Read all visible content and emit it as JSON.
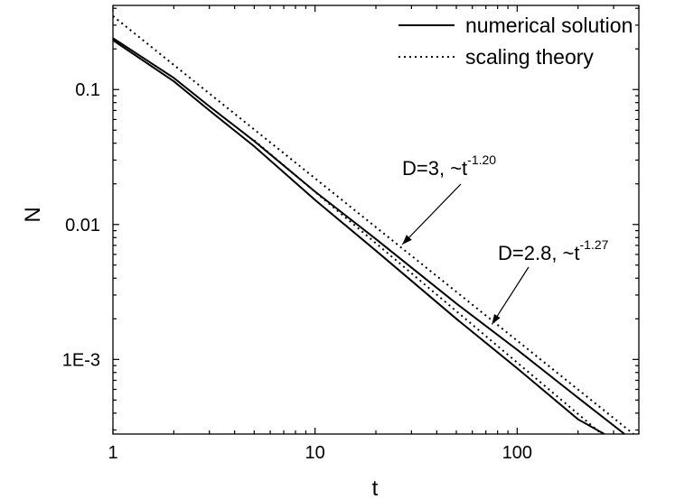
{
  "chart_data": {
    "type": "line",
    "xlabel": "t",
    "ylabel": "N",
    "xscale": "log",
    "yscale": "log",
    "xlim": [
      1,
      400
    ],
    "ylim": [
      0.00028,
      0.42
    ],
    "x_ticks": [
      {
        "value": 1,
        "label": "1"
      },
      {
        "value": 10,
        "label": "10"
      },
      {
        "value": 100,
        "label": "100"
      }
    ],
    "y_ticks": [
      {
        "value": 0.1,
        "label": "0.1"
      },
      {
        "value": 0.01,
        "label": "0.01"
      },
      {
        "value": 0.001,
        "label": "1E-3"
      }
    ],
    "grid": false,
    "legend_position": "top-right",
    "legend": [
      {
        "label": "numerical solution",
        "style": "solid"
      },
      {
        "label": "scaling theory",
        "style": "dotted"
      }
    ],
    "series": [
      {
        "group": "D3",
        "style": "solid",
        "legend_index": 0,
        "x": [
          1,
          2,
          3,
          5,
          10,
          20,
          50,
          100,
          200,
          340
        ],
        "y": [
          0.24,
          0.122,
          0.075,
          0.0415,
          0.0175,
          0.0078,
          0.0026,
          0.00118,
          0.00052,
          0.00028
        ]
      },
      {
        "group": "D3",
        "style": "dotted",
        "legend_index": 1,
        "x": [
          1,
          400
        ],
        "y": [
          0.35,
          0.00026
        ]
      },
      {
        "group": "D2.8",
        "style": "solid",
        "legend_index": 0,
        "x": [
          1,
          2,
          3,
          5,
          10,
          20,
          50,
          100,
          200,
          270
        ],
        "y": [
          0.232,
          0.115,
          0.07,
          0.038,
          0.0152,
          0.0064,
          0.002,
          0.00086,
          0.00036,
          0.00028
        ]
      },
      {
        "group": "D2.8",
        "style": "dotted",
        "legend_index": 1,
        "x": [
          5,
          270
        ],
        "y": [
          0.042,
          0.00027
        ]
      }
    ],
    "annotations": [
      {
        "text": "D=3, ~t",
        "exponent": "-1.20",
        "point": [
          27,
          0.0071
        ]
      },
      {
        "text": "D=2.8, ~t",
        "exponent": "-1.27",
        "point": [
          75,
          0.00182
        ]
      }
    ]
  }
}
